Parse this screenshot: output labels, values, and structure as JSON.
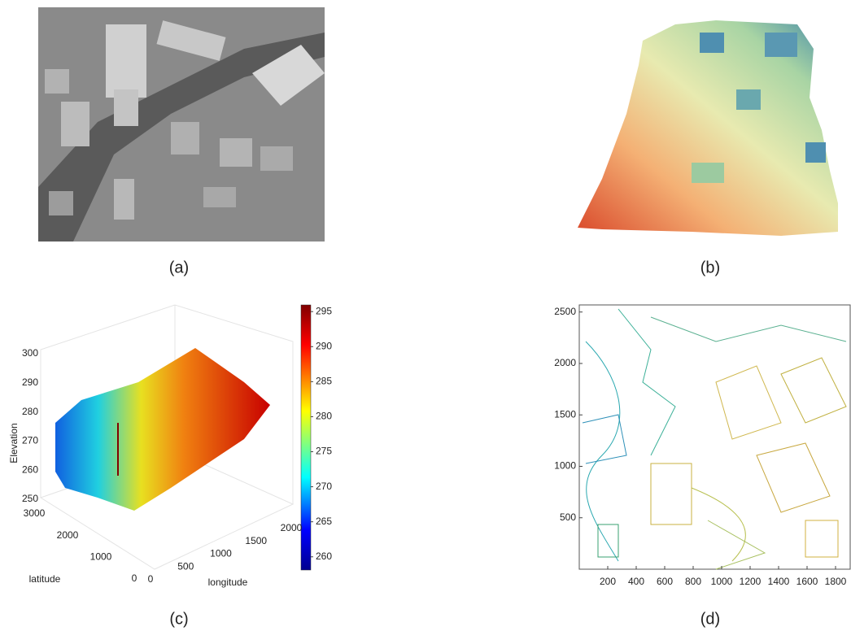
{
  "panels": [
    {
      "caption": "(a)"
    },
    {
      "caption": "(b)"
    },
    {
      "caption": "(c)",
      "zlabel": "Elevation",
      "ylabel": "latitude",
      "xlabel": "longitude",
      "zlim": [
        250,
        300
      ],
      "zticks": [
        250,
        260,
        270,
        280,
        290,
        300
      ],
      "ylim": [
        0,
        3000
      ],
      "yticks": [
        0,
        1000,
        2000,
        3000
      ],
      "xlim": [
        0,
        2000
      ],
      "xticks": [
        0,
        500,
        1000,
        1500,
        2000
      ],
      "colorbar_lim": [
        258,
        296.3
      ],
      "colorbar_ticks": [
        260,
        265,
        270,
        275,
        280,
        285,
        290,
        295
      ]
    },
    {
      "caption": "(d)",
      "xlim": [
        0,
        1900
      ],
      "xticks": [
        200,
        400,
        600,
        800,
        1000,
        1200,
        1400,
        1600,
        1800
      ],
      "ylim": [
        0,
        2580
      ],
      "yticks": [
        500,
        1000,
        1500,
        2000,
        2500
      ]
    }
  ]
}
